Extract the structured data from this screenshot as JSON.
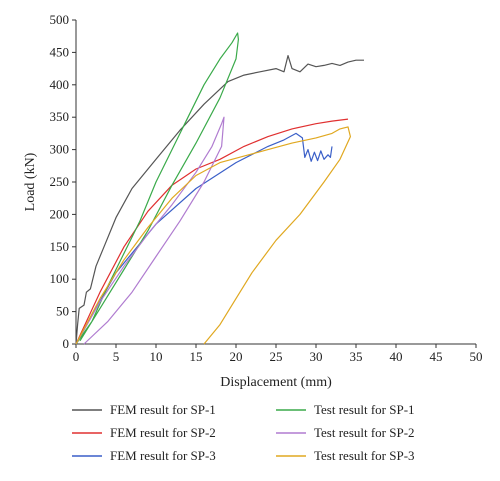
{
  "chart_data": {
    "type": "line",
    "xlabel": "Displacement (mm)",
    "ylabel": "Load (kN)",
    "xlim": [
      0,
      50
    ],
    "ylim": [
      0,
      500
    ],
    "xticks": [
      0,
      5,
      10,
      15,
      20,
      25,
      30,
      35,
      40,
      45,
      50
    ],
    "yticks": [
      0,
      50,
      100,
      150,
      200,
      250,
      300,
      350,
      400,
      450,
      500
    ],
    "grid": false,
    "legend_position": "bottom",
    "series": [
      {
        "name": "FEM result for SP-1",
        "color": "#555555",
        "points": [
          [
            0,
            0
          ],
          [
            0.2,
            30
          ],
          [
            0.4,
            55
          ],
          [
            1,
            60
          ],
          [
            1.3,
            80
          ],
          [
            1.8,
            85
          ],
          [
            2.5,
            120
          ],
          [
            3.5,
            150
          ],
          [
            5,
            195
          ],
          [
            7,
            240
          ],
          [
            10,
            285
          ],
          [
            13,
            330
          ],
          [
            16,
            370
          ],
          [
            19,
            405
          ],
          [
            21,
            415
          ],
          [
            23,
            420
          ],
          [
            25,
            425
          ],
          [
            26,
            420
          ],
          [
            26.5,
            445
          ],
          [
            27,
            425
          ],
          [
            28,
            420
          ],
          [
            29,
            432
          ],
          [
            30,
            428
          ],
          [
            31,
            430
          ],
          [
            32,
            433
          ],
          [
            33,
            430
          ],
          [
            34,
            435
          ],
          [
            35,
            438
          ],
          [
            36,
            438
          ]
        ]
      },
      {
        "name": "FEM result for SP-2",
        "color": "#e03030",
        "points": [
          [
            0,
            0
          ],
          [
            3,
            80
          ],
          [
            6,
            150
          ],
          [
            9,
            205
          ],
          [
            12,
            245
          ],
          [
            15,
            270
          ],
          [
            18,
            285
          ],
          [
            21,
            305
          ],
          [
            24,
            320
          ],
          [
            27,
            332
          ],
          [
            30,
            340
          ],
          [
            32,
            344
          ],
          [
            34,
            347
          ]
        ]
      },
      {
        "name": "FEM result for SP-3",
        "color": "#3a5fc8",
        "points": [
          [
            0,
            0
          ],
          [
            5,
            110
          ],
          [
            10,
            185
          ],
          [
            15,
            240
          ],
          [
            20,
            280
          ],
          [
            24,
            305
          ],
          [
            26,
            315
          ],
          [
            27.5,
            325
          ],
          [
            28.3,
            318
          ],
          [
            28.6,
            288
          ],
          [
            29,
            300
          ],
          [
            29.4,
            282
          ],
          [
            29.8,
            296
          ],
          [
            30.2,
            283
          ],
          [
            30.6,
            298
          ],
          [
            31,
            285
          ],
          [
            31.5,
            292
          ],
          [
            31.8,
            288
          ],
          [
            32,
            305
          ]
        ]
      },
      {
        "name": "Test result for SP-1",
        "color": "#3aaa4a",
        "points": [
          [
            0,
            0
          ],
          [
            2,
            35
          ],
          [
            4,
            90
          ],
          [
            6,
            140
          ],
          [
            8,
            190
          ],
          [
            10,
            250
          ],
          [
            12,
            300
          ],
          [
            14,
            350
          ],
          [
            16,
            400
          ],
          [
            18,
            440
          ],
          [
            19.5,
            465
          ],
          [
            20.2,
            480
          ],
          [
            20.3,
            470
          ],
          [
            20,
            440
          ],
          [
            18,
            380
          ],
          [
            15,
            310
          ],
          [
            12,
            245
          ],
          [
            9,
            175
          ],
          [
            6,
            115
          ],
          [
            3,
            55
          ],
          [
            0.5,
            5
          ]
        ]
      },
      {
        "name": "Test result for SP-2",
        "color": "#b07cd0",
        "points": [
          [
            0,
            0
          ],
          [
            3,
            65
          ],
          [
            6,
            120
          ],
          [
            9,
            170
          ],
          [
            12,
            215
          ],
          [
            15,
            265
          ],
          [
            17,
            305
          ],
          [
            18.2,
            340
          ],
          [
            18.5,
            350
          ],
          [
            18.2,
            305
          ],
          [
            16,
            250
          ],
          [
            13,
            190
          ],
          [
            10,
            135
          ],
          [
            7,
            80
          ],
          [
            4,
            35
          ],
          [
            1,
            0
          ]
        ]
      },
      {
        "name": "Test result for SP-3",
        "color": "#e0a820",
        "points": [
          [
            0,
            0
          ],
          [
            3,
            70
          ],
          [
            6,
            130
          ],
          [
            9,
            180
          ],
          [
            12,
            225
          ],
          [
            15,
            260
          ],
          [
            18,
            280
          ],
          [
            21,
            290
          ],
          [
            24,
            300
          ],
          [
            27,
            310
          ],
          [
            30,
            318
          ],
          [
            32,
            325
          ],
          [
            33,
            332
          ],
          [
            34,
            335
          ],
          [
            34.3,
            320
          ],
          [
            33,
            285
          ],
          [
            31,
            250
          ],
          [
            28,
            200
          ],
          [
            25,
            160
          ],
          [
            22,
            110
          ],
          [
            20,
            70
          ],
          [
            18,
            30
          ],
          [
            16,
            0
          ]
        ]
      }
    ]
  }
}
